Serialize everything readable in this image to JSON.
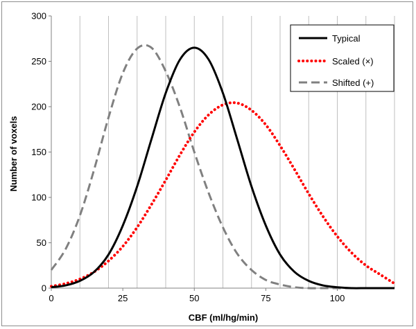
{
  "chart_data": {
    "type": "line",
    "xlabel": "CBF (ml/hg/min)",
    "ylabel": "Number of voxels",
    "xlim": [
      0,
      120
    ],
    "ylim": [
      0,
      300
    ],
    "x_ticks": [
      0,
      25,
      50,
      75,
      100
    ],
    "y_ticks": [
      0,
      50,
      100,
      150,
      200,
      250,
      300
    ],
    "grid": "vertical lines every 10 units",
    "legend_position": "top-right",
    "series": [
      {
        "name": "Typical",
        "color": "#000000",
        "style": "solid",
        "x": [
          0,
          5,
          10,
          15,
          20,
          25,
          30,
          35,
          40,
          45,
          50,
          55,
          60,
          65,
          70,
          75,
          80,
          85,
          90,
          95,
          100,
          105,
          110,
          115,
          120
        ],
        "y": [
          1,
          3,
          8,
          18,
          37,
          69,
          112,
          164,
          215,
          252,
          265,
          252,
          215,
          164,
          112,
          69,
          37,
          18,
          8,
          3,
          1,
          0,
          0,
          0,
          0
        ]
      },
      {
        "name": "Scaled (×)",
        "color": "#ff0000",
        "style": "dotted",
        "x": [
          0,
          5,
          10,
          15,
          20,
          25,
          30,
          35,
          40,
          45,
          50,
          55,
          60,
          65,
          70,
          75,
          80,
          85,
          90,
          95,
          100,
          105,
          110,
          115,
          120
        ],
        "y": [
          2,
          5,
          10,
          18,
          30,
          46,
          67,
          92,
          119,
          147,
          172,
          191,
          202,
          204,
          196,
          180,
          157,
          131,
          104,
          79,
          57,
          39,
          25,
          15,
          5
        ]
      },
      {
        "name": "Shifted (+)",
        "color": "#808080",
        "style": "dashed",
        "x": [
          0,
          5,
          10,
          15,
          20,
          25,
          30,
          35,
          40,
          45,
          50,
          55,
          60,
          65,
          70,
          75,
          80,
          85,
          90,
          95,
          100,
          105,
          110,
          115,
          120
        ],
        "y": [
          20,
          43,
          80,
          131,
          188,
          237,
          264,
          265,
          239,
          199,
          150,
          105,
          67,
          38,
          20,
          9,
          4,
          1,
          0,
          0,
          0,
          0,
          0,
          0,
          0
        ]
      }
    ]
  }
}
